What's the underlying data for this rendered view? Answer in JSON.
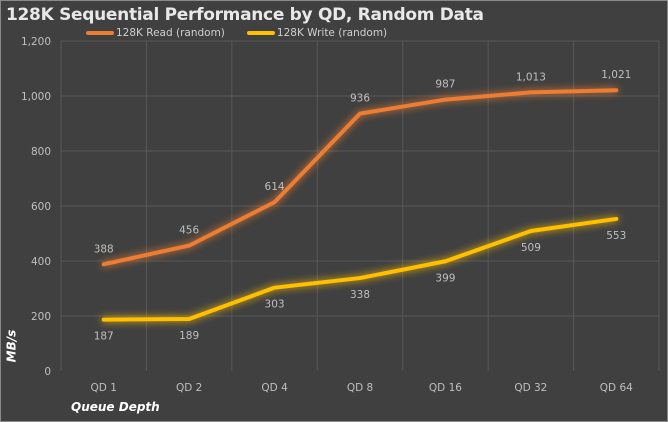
{
  "chart_data": {
    "type": "line",
    "title": "128K Sequential Performance  by QD, Random Data",
    "xlabel": "Queue Depth",
    "ylabel": "MB/s",
    "categories": [
      "QD 1",
      "QD 2",
      "QD 4",
      "QD 8",
      "QD 16",
      "QD 32",
      "QD 64"
    ],
    "ylim": [
      0,
      1200
    ],
    "yticks": [
      0,
      200,
      400,
      600,
      800,
      1000,
      1200
    ],
    "ytick_labels": [
      "0",
      "200",
      "400",
      "600",
      "800",
      "1,000",
      "1,200"
    ],
    "grid": true,
    "legend_position": "top",
    "series": [
      {
        "name": "128K Read (random)",
        "color": "#ed7d31",
        "values": [
          388,
          456,
          614,
          936,
          987,
          1013,
          1021
        ],
        "labels": [
          "388",
          "456",
          "614",
          "936",
          "987",
          "1,013",
          "1,021"
        ],
        "label_pos": "above"
      },
      {
        "name": "128K Write (random)",
        "color": "#ffc000",
        "values": [
          187,
          189,
          303,
          338,
          399,
          509,
          553
        ],
        "labels": [
          "187",
          "189",
          "303",
          "338",
          "399",
          "509",
          "553"
        ],
        "label_pos": "below"
      }
    ]
  }
}
